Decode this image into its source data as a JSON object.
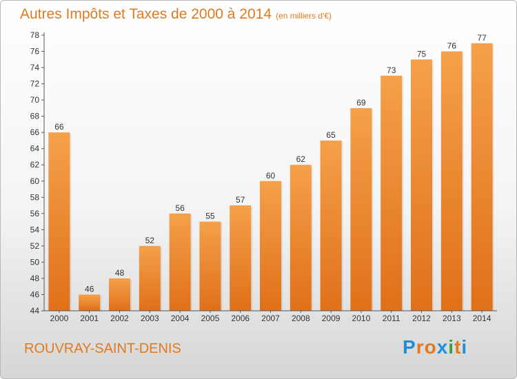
{
  "chart_data": {
    "type": "bar",
    "title": "Autres Impôts et Taxes de 2000 à 2014",
    "subtitle": "(en milliers d'€)",
    "categories": [
      "2000",
      "2001",
      "2002",
      "2003",
      "2004",
      "2005",
      "2006",
      "2007",
      "2008",
      "2009",
      "2010",
      "2011",
      "2012",
      "2013",
      "2014"
    ],
    "values": [
      66,
      46,
      48,
      52,
      56,
      55,
      57,
      60,
      62,
      65,
      69,
      73,
      75,
      76,
      77
    ],
    "ylim": [
      44,
      78
    ],
    "yticks": [
      44,
      46,
      48,
      50,
      52,
      54,
      56,
      58,
      60,
      62,
      64,
      66,
      68,
      70,
      72,
      74,
      76,
      78
    ],
    "grid": false,
    "bar_color": "#f5a04a",
    "bar_color_dark": "#e0701a"
  },
  "footer": {
    "place": "ROUVRAY-SAINT-DENIS",
    "logo": "Proxiti"
  },
  "colors": {
    "accent": "#e07a1f",
    "logo_letters": [
      "#1f8ed6",
      "#e07a1f",
      "#e07a1f",
      "#1f8ed6",
      "#2fa34a",
      "#e07a1f",
      "#1f8ed6"
    ]
  }
}
